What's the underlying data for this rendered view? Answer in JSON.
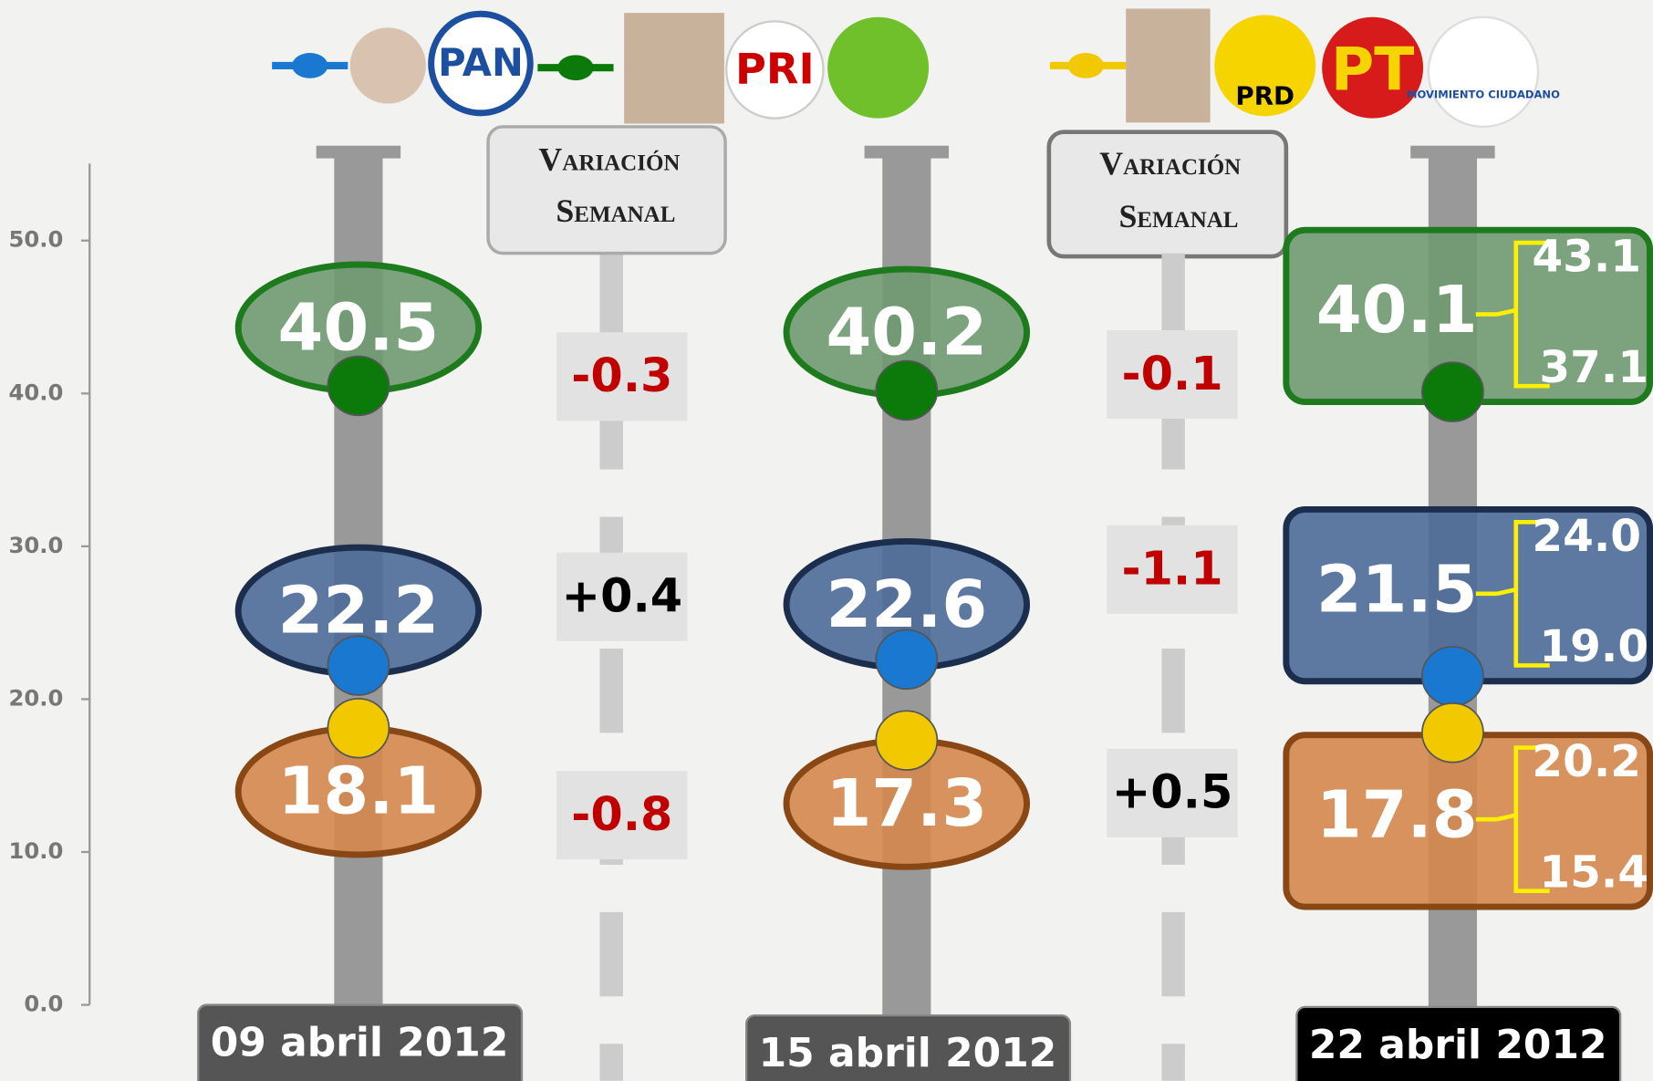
{
  "chart_data": {
    "type": "dot",
    "categories": [
      "09 abril 2012",
      "15 abril 2012",
      "22 abril 2012"
    ],
    "ylim": [
      0,
      50
    ],
    "yticks": [
      {
        "value": 0,
        "label": "0.0"
      },
      {
        "value": 10,
        "label": "10.0"
      },
      {
        "value": 20,
        "label": "20.0"
      },
      {
        "value": 30,
        "label": "30.0"
      },
      {
        "value": 40,
        "label": "40.0"
      },
      {
        "value": 50,
        "label": "50.0"
      }
    ],
    "series": [
      {
        "color": "#0b7a0b",
        "label_color": "#6f9a70",
        "border_color": "#1d7a1d",
        "values": [
          40.5,
          40.2,
          40.1
        ],
        "interval": [
          37.1,
          43.1
        ]
      },
      {
        "color": "#1a78d0",
        "label_color": "#4d6c99",
        "border_color": "#1c2e4d",
        "values": [
          22.2,
          22.6,
          21.5
        ],
        "interval": [
          {
            "value": 19,
            "label": "19.0"
          },
          {
            "value": 24,
            "label": "24.0"
          }
        ]
      },
      {
        "color": "#f2c800",
        "label_color": "#d5874c",
        "border_color": "#8a4716",
        "values": [
          18.1,
          17.3,
          17.8
        ],
        "interval": [
          15.4,
          20.2
        ]
      }
    ],
    "variation_title": [
      "Variación",
      "Semanal"
    ],
    "variations": [
      {
        "values": [
          -0.3,
          0.4,
          -0.8
        ],
        "value_labels": [
          "-0.3",
          "+0.4",
          "-0.8"
        ]
      },
      {
        "values": [
          -0.1,
          -1.1,
          0.5
        ],
        "value_labels": [
          "-0.1",
          "-1.1",
          "+0.5"
        ]
      }
    ],
    "negative_color": "#c00000",
    "positive_color": "#000000",
    "logos": [
      "PAN",
      "PRI",
      "PRD",
      "PT",
      "MOVIMIENTO CIUDADANO"
    ]
  }
}
